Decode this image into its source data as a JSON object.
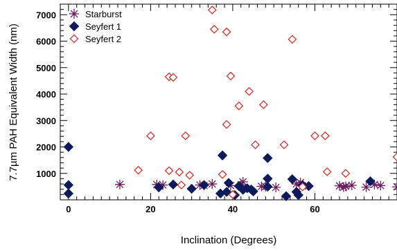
{
  "chart_data": {
    "type": "scatter",
    "xlabel": "Inclination (Degrees)",
    "ylabel": "7.7µm PAH Equivalent Width (nm)",
    "xlim": [
      -2,
      80
    ],
    "ylim": [
      0,
      7400
    ],
    "xticks": [
      0,
      20,
      40,
      60
    ],
    "yticks": [
      1000,
      2000,
      3000,
      4000,
      5000,
      6000,
      7000
    ],
    "grid": false,
    "legend_position": "top-left",
    "series": [
      {
        "name": "Starburst",
        "marker": "asterisk",
        "color": "#6b1a5e",
        "x": [
          12.5,
          21.5,
          23,
          32,
          33,
          35,
          39.5,
          42,
          42.5,
          47,
          48,
          50.5,
          55.5,
          56.5,
          57,
          66,
          67,
          67.5,
          69,
          72.5,
          74.5,
          76,
          80
        ],
        "y": [
          580,
          580,
          560,
          560,
          540,
          600,
          540,
          560,
          680,
          510,
          500,
          470,
          600,
          650,
          520,
          530,
          480,
          510,
          550,
          480,
          580,
          540,
          490
        ]
      },
      {
        "name": "Seyfert 1",
        "marker": "diamond-filled",
        "color": "#0c1a5c",
        "x": [
          0,
          0,
          0,
          22,
          25.5,
          30,
          33,
          37,
          37.5,
          38.5,
          39,
          40.5,
          41.5,
          42.5,
          43.5,
          44.5,
          45,
          48.5,
          48.5,
          48.5,
          53,
          54.5,
          55.5,
          56,
          57,
          58.5,
          73.5
        ],
        "y": [
          2000,
          560,
          240,
          470,
          580,
          420,
          560,
          240,
          1680,
          300,
          640,
          180,
          520,
          380,
          440,
          390,
          320,
          500,
          1580,
          800,
          140,
          780,
          300,
          180,
          560,
          520,
          700
        ]
      },
      {
        "name": "Seyfert 2",
        "marker": "diamond-open",
        "color": "#e0201b",
        "x": [
          20,
          17,
          24.5,
          24.5,
          25.5,
          27,
          27.5,
          28.5,
          29.5,
          35,
          35.5,
          37.5,
          38.5,
          39.5,
          38.5,
          40,
          44,
          41.5,
          45.5,
          47.5,
          52.5,
          54.5,
          57,
          60,
          62.5,
          63,
          67.5,
          80
        ],
        "y": [
          2420,
          1120,
          1100,
          4650,
          4630,
          1050,
          560,
          2420,
          930,
          7180,
          6450,
          960,
          6350,
          4680,
          2850,
          200,
          4100,
          3550,
          2080,
          3600,
          2080,
          6070,
          490,
          2420,
          2420,
          1060,
          1000,
          1620
        ]
      }
    ]
  }
}
